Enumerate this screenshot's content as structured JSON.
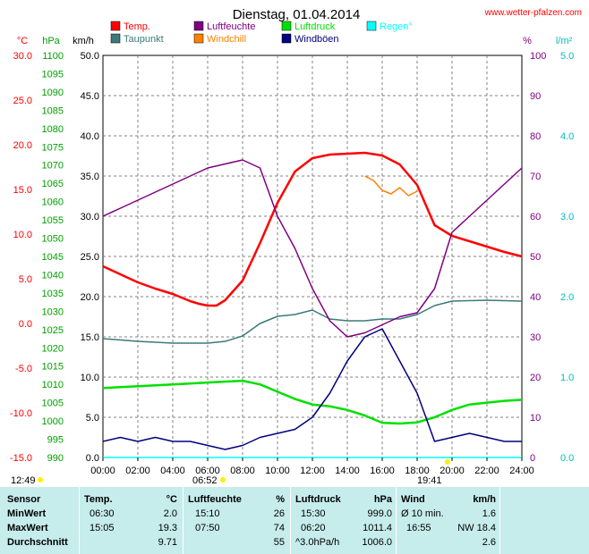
{
  "title": "Dienstag, 01.04.2014",
  "site": "www.wetter-pfalzen.com",
  "axis_units": {
    "celsius": "°C",
    "hpa": "hPa",
    "kmh": "km/h",
    "percent": "%",
    "rain": "l/m²"
  },
  "legend": [
    {
      "label": "Temp.",
      "color": "#ff0000"
    },
    {
      "label": "Luftfeuchte",
      "color": "#800080"
    },
    {
      "label": "Luftdruck",
      "color": "#00e000"
    },
    {
      "label": "Regen°",
      "color": "#00ffff"
    },
    {
      "label": "Taupunkt",
      "color": "#3a7a78"
    },
    {
      "label": "Windchill",
      "color": "#ff8000"
    },
    {
      "label": "Windböen",
      "color": "#000080"
    }
  ],
  "markers": {
    "sunrise": "06:52",
    "sunset": "19:41",
    "now": "12:49"
  },
  "chart_data": {
    "type": "line",
    "x_ticks": [
      "00:00",
      "02:00",
      "04:00",
      "06:00",
      "08:00",
      "10:00",
      "12:00",
      "14:00",
      "16:00",
      "18:00",
      "20:00",
      "22:00",
      "24:00"
    ],
    "axes": {
      "temperature": {
        "ticks": [
          "30.0",
          "25.0",
          "20.0",
          "15.0",
          "10.0",
          "5.0",
          "0.0",
          "-5.0",
          "-10.0",
          "-15.0"
        ],
        "range": [
          -15,
          30
        ]
      },
      "pressure": {
        "ticks": [
          "1100",
          "1095",
          "1090",
          "1085",
          "1080",
          "1075",
          "1070",
          "1065",
          "1060",
          "1055",
          "1050",
          "1045",
          "1040",
          "1035",
          "1030",
          "1025",
          "1020",
          "1015",
          "1010",
          "1005",
          "1000",
          "995",
          "990"
        ],
        "range": [
          990,
          1100
        ]
      },
      "wind": {
        "ticks": [
          "50.0",
          "45.0",
          "40.0",
          "35.0",
          "30.0",
          "25.0",
          "20.0",
          "15.0",
          "10.0",
          "5.0",
          "0.0"
        ],
        "range": [
          0,
          50
        ]
      },
      "humidity": {
        "ticks": [
          "100",
          "90",
          "80",
          "70",
          "60",
          "50",
          "40",
          "30",
          "20",
          "10",
          "0"
        ],
        "range": [
          0,
          100
        ]
      },
      "rain": {
        "ticks": [
          "5.0",
          "4.0",
          "3.0",
          "2.0",
          "1.0",
          "0.0"
        ],
        "range": [
          0,
          5
        ]
      }
    },
    "series": [
      {
        "name": "Temp.",
        "axis": "temperature",
        "x": [
          0,
          1,
          2,
          3,
          4,
          5,
          5.5,
          6,
          6.5,
          7,
          8,
          9,
          10,
          11,
          12,
          13,
          14,
          15,
          16,
          17,
          18,
          19,
          20,
          21,
          22,
          23,
          24
        ],
        "y": [
          6.4,
          5.5,
          4.6,
          3.9,
          3.3,
          2.5,
          2.2,
          2.0,
          2.0,
          2.6,
          4.8,
          9.0,
          13.5,
          17.0,
          18.5,
          18.9,
          19.0,
          19.1,
          18.8,
          17.8,
          15.5,
          11.0,
          9.8,
          9.2,
          8.6,
          8.0,
          7.5
        ]
      },
      {
        "name": "Taupunkt",
        "axis": "temperature",
        "x": [
          0,
          2,
          4,
          6,
          7,
          8,
          9,
          10,
          11,
          12,
          13,
          14,
          15,
          16,
          17,
          18,
          19,
          20,
          22,
          24
        ],
        "y": [
          -1.7,
          -2.0,
          -2.2,
          -2.2,
          -2.0,
          -1.4,
          0.0,
          0.8,
          1.0,
          1.5,
          0.5,
          0.3,
          0.3,
          0.5,
          0.5,
          1.0,
          2.0,
          2.5,
          2.6,
          2.5
        ]
      },
      {
        "name": "Luftfeuchte",
        "axis": "humidity",
        "x": [
          0,
          1,
          2,
          3,
          4,
          5,
          6,
          7,
          8,
          9,
          10,
          11,
          12,
          13,
          14,
          15,
          16,
          17,
          18,
          19,
          20,
          21,
          22,
          23,
          24
        ],
        "y": [
          60,
          62,
          64,
          66,
          68,
          70,
          72,
          73,
          74,
          72,
          60,
          52,
          42,
          34,
          30,
          31,
          33,
          35,
          36,
          42,
          56,
          60,
          64,
          68,
          72
        ]
      },
      {
        "name": "Luftdruck",
        "axis": "pressure",
        "x": [
          0,
          2,
          4,
          6,
          8,
          9,
          10,
          11,
          12,
          13,
          14,
          15,
          16,
          17,
          18,
          19,
          20,
          21,
          22,
          23,
          24
        ],
        "y": [
          1009.0,
          1009.5,
          1010.0,
          1010.5,
          1011.0,
          1010.0,
          1008.0,
          1006.0,
          1004.5,
          1004.0,
          1003.0,
          1001.5,
          999.5,
          999.3,
          999.6,
          1001.0,
          1003.0,
          1004.5,
          1005.0,
          1005.5,
          1005.8
        ]
      },
      {
        "name": "Windchill",
        "axis": "temperature",
        "x": [
          15.0,
          15.5,
          16.0,
          16.5,
          17.0,
          17.5,
          18.0
        ],
        "y": [
          16.5,
          16.0,
          14.9,
          14.5,
          15.2,
          14.3,
          14.8
        ]
      },
      {
        "name": "Windböen",
        "axis": "wind",
        "x": [
          0,
          1,
          2,
          3,
          4,
          5,
          6,
          7,
          8,
          9,
          10,
          11,
          12,
          13,
          14,
          15,
          16,
          17,
          18,
          19,
          20,
          21,
          22,
          23,
          24
        ],
        "y": [
          2.0,
          2.5,
          2.0,
          2.5,
          2.0,
          2.0,
          1.5,
          1.0,
          1.5,
          2.5,
          3.0,
          3.5,
          5.0,
          8.0,
          12.0,
          15.0,
          16.0,
          12.0,
          8.0,
          2.0,
          2.5,
          3.0,
          2.5,
          2.0,
          2.0
        ]
      },
      {
        "name": "Regen°",
        "axis": "rain",
        "x": [
          0,
          24
        ],
        "y": [
          0.0,
          0.0
        ]
      }
    ]
  },
  "table": {
    "headers": [
      {
        "label": "Sensor"
      },
      {
        "label": "Temp.",
        "unit": "°C"
      },
      {
        "label": "Luftfeuchte",
        "unit": "%"
      },
      {
        "label": "Luftdruck",
        "unit": "hPa"
      },
      {
        "label": "Wind",
        "unit": "km/h"
      }
    ],
    "rows": [
      {
        "label": "MinWert",
        "temp_time": "06:30",
        "temp": "2.0",
        "hum_time": "15:10",
        "hum": "26",
        "press_time": "15:30",
        "press": "999.0",
        "wind_time": "Ø 10 min.",
        "wind": "1.6"
      },
      {
        "label": "MaxWert",
        "temp_time": "15:05",
        "temp": "19.3",
        "hum_time": "07:50",
        "hum": "74",
        "press_time": "06:20",
        "press": "1011.4",
        "wind_time": "16:55",
        "wind": "NW 18.4"
      },
      {
        "label": "Durchschnitt",
        "temp_time": "",
        "temp": "9.71",
        "hum_time": "",
        "hum": "55",
        "press_time": "^3.0hPa/h",
        "press": "1006.0",
        "wind_time": "",
        "wind": "2.6"
      }
    ]
  }
}
